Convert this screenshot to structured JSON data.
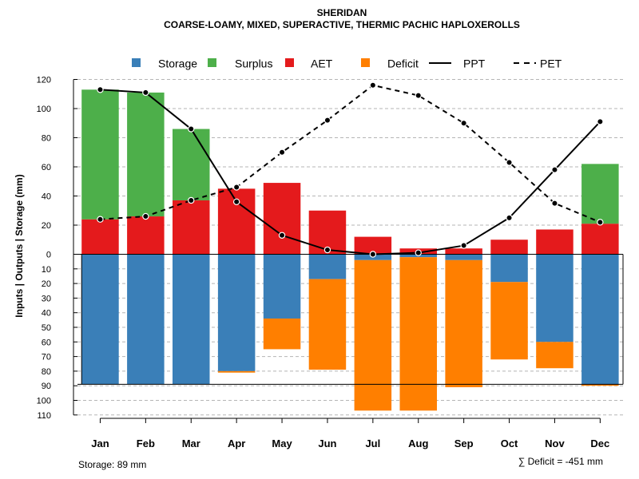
{
  "chart_data": {
    "type": "bar",
    "title": "SHERIDAN",
    "subtitle": "COARSE-LOAMY, MIXED, SUPERACTIVE, THERMIC PACHIC HAPLOXEROLLS",
    "ylabel": "Inputs | Outputs | Storage    (mm)",
    "categories": [
      "Jan",
      "Feb",
      "Mar",
      "Apr",
      "May",
      "Jun",
      "Jul",
      "Aug",
      "Sep",
      "Oct",
      "Nov",
      "Dec"
    ],
    "ylim_upper": [
      0,
      120
    ],
    "ylim_lower": [
      0,
      110
    ],
    "upper_ticks": [
      "0",
      "20",
      "40",
      "60",
      "80",
      "100",
      "120"
    ],
    "lower_ticks": [
      "10",
      "20",
      "30",
      "40",
      "50",
      "60",
      "70",
      "80",
      "90",
      "100",
      "110"
    ],
    "series": [
      {
        "name": "AET",
        "values": [
          24,
          26,
          37,
          45,
          49,
          30,
          12,
          4,
          4,
          10,
          17,
          21
        ]
      },
      {
        "name": "Surplus",
        "values": [
          89,
          85,
          49,
          0,
          0,
          0,
          0,
          0,
          0,
          0,
          0,
          41
        ]
      },
      {
        "name": "Storage",
        "values": [
          89,
          89,
          89,
          80,
          44,
          17,
          4,
          2,
          4,
          19,
          60,
          89
        ]
      },
      {
        "name": "Deficit",
        "values": [
          0,
          0,
          0,
          1,
          21,
          62,
          103,
          105,
          87,
          53,
          18,
          1
        ]
      },
      {
        "name": "PPT",
        "values": [
          113,
          111,
          86,
          36,
          13,
          3,
          0,
          1,
          6,
          25,
          58,
          91
        ]
      },
      {
        "name": "PET",
        "values": [
          24,
          26,
          37,
          46,
          70,
          92,
          116,
          109,
          90,
          63,
          35,
          22
        ]
      }
    ],
    "storage_capacity": 89,
    "legend": [
      {
        "name": "Storage",
        "color": "#3a7fb8",
        "kind": "square"
      },
      {
        "name": "Surplus",
        "color": "#4daf4a",
        "kind": "square"
      },
      {
        "name": "AET",
        "color": "#e41a1c",
        "kind": "square"
      },
      {
        "name": "Deficit",
        "color": "#ff7f00",
        "kind": "square"
      },
      {
        "name": "PPT",
        "color": "#000000",
        "kind": "solid"
      },
      {
        "name": "PET",
        "color": "#000000",
        "kind": "dashed"
      }
    ],
    "legend_position": "top"
  },
  "footer": {
    "storage_note": "Storage: 89 mm",
    "deficit_note": "∑ Deficit = -451 mm"
  }
}
